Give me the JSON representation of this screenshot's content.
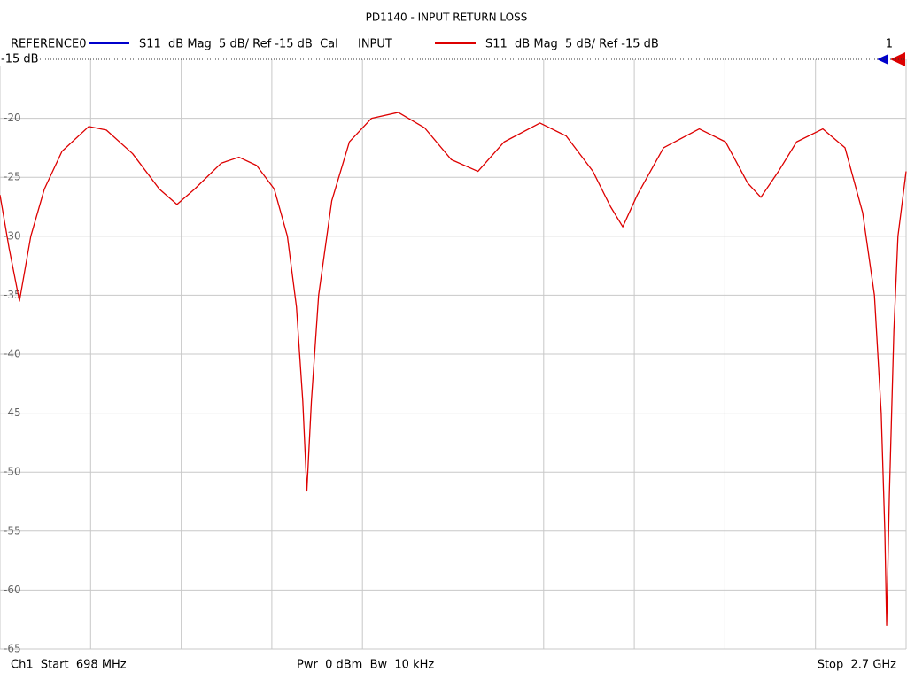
{
  "chart_data": {
    "type": "line",
    "title": "PD1140 - INPUT RETURN LOSS",
    "reference": {
      "name": "REFERENCE0",
      "color": "#0000cc",
      "description": "S11  dB Mag  5 dB/ Ref -15 dB  Cal"
    },
    "marker_label": "1",
    "start_label": "Ch1  Start  698 MHz",
    "settings_label": "Pwr  0 dBm  Bw  10 kHz",
    "stop_label": "Stop  2.7 GHz",
    "xlim": [
      698,
      2700
    ],
    "ylim": [
      -65,
      -15
    ],
    "yticks": [
      {
        "value": -15,
        "label": "-15 dB"
      },
      -20,
      -25,
      -30,
      -35,
      -40,
      -45,
      -50,
      -55,
      -60,
      -65
    ],
    "grid": true,
    "x": [
      698,
      718,
      741,
      766,
      796,
      835,
      894,
      933,
      991,
      1050,
      1089,
      1128,
      1187,
      1226,
      1265,
      1304,
      1333,
      1353,
      1367,
      1376,
      1386,
      1402,
      1431,
      1470,
      1519,
      1578,
      1636,
      1695,
      1754,
      1812,
      1891,
      1949,
      2008,
      2047,
      2074,
      2106,
      2164,
      2243,
      2301,
      2350,
      2379,
      2418,
      2458,
      2516,
      2565,
      2604,
      2630,
      2645,
      2653,
      2657,
      2663,
      2673,
      2682,
      2700
    ],
    "series": [
      {
        "name": "INPUT",
        "color": "#dd0000",
        "description": "S11  dB Mag  5 dB/ Ref -15 dB",
        "values": [
          -26.5,
          -31,
          -35.5,
          -30,
          -26,
          -22.8,
          -20.7,
          -21,
          -23,
          -26,
          -27.3,
          -26,
          -23.8,
          -23.3,
          -24,
          -26,
          -30,
          -36,
          -44,
          -51.6,
          -44,
          -35,
          -27,
          -22,
          -20,
          -19.5,
          -20.8,
          -23.5,
          -24.5,
          -22,
          -20.4,
          -21.5,
          -24.5,
          -27.5,
          -29.2,
          -26.5,
          -22.5,
          -20.9,
          -22,
          -25.5,
          -26.7,
          -24.5,
          -22,
          -20.9,
          -22.5,
          -28,
          -35,
          -45,
          -55,
          -63,
          -52,
          -38,
          -30,
          -24.5
        ]
      }
    ]
  }
}
